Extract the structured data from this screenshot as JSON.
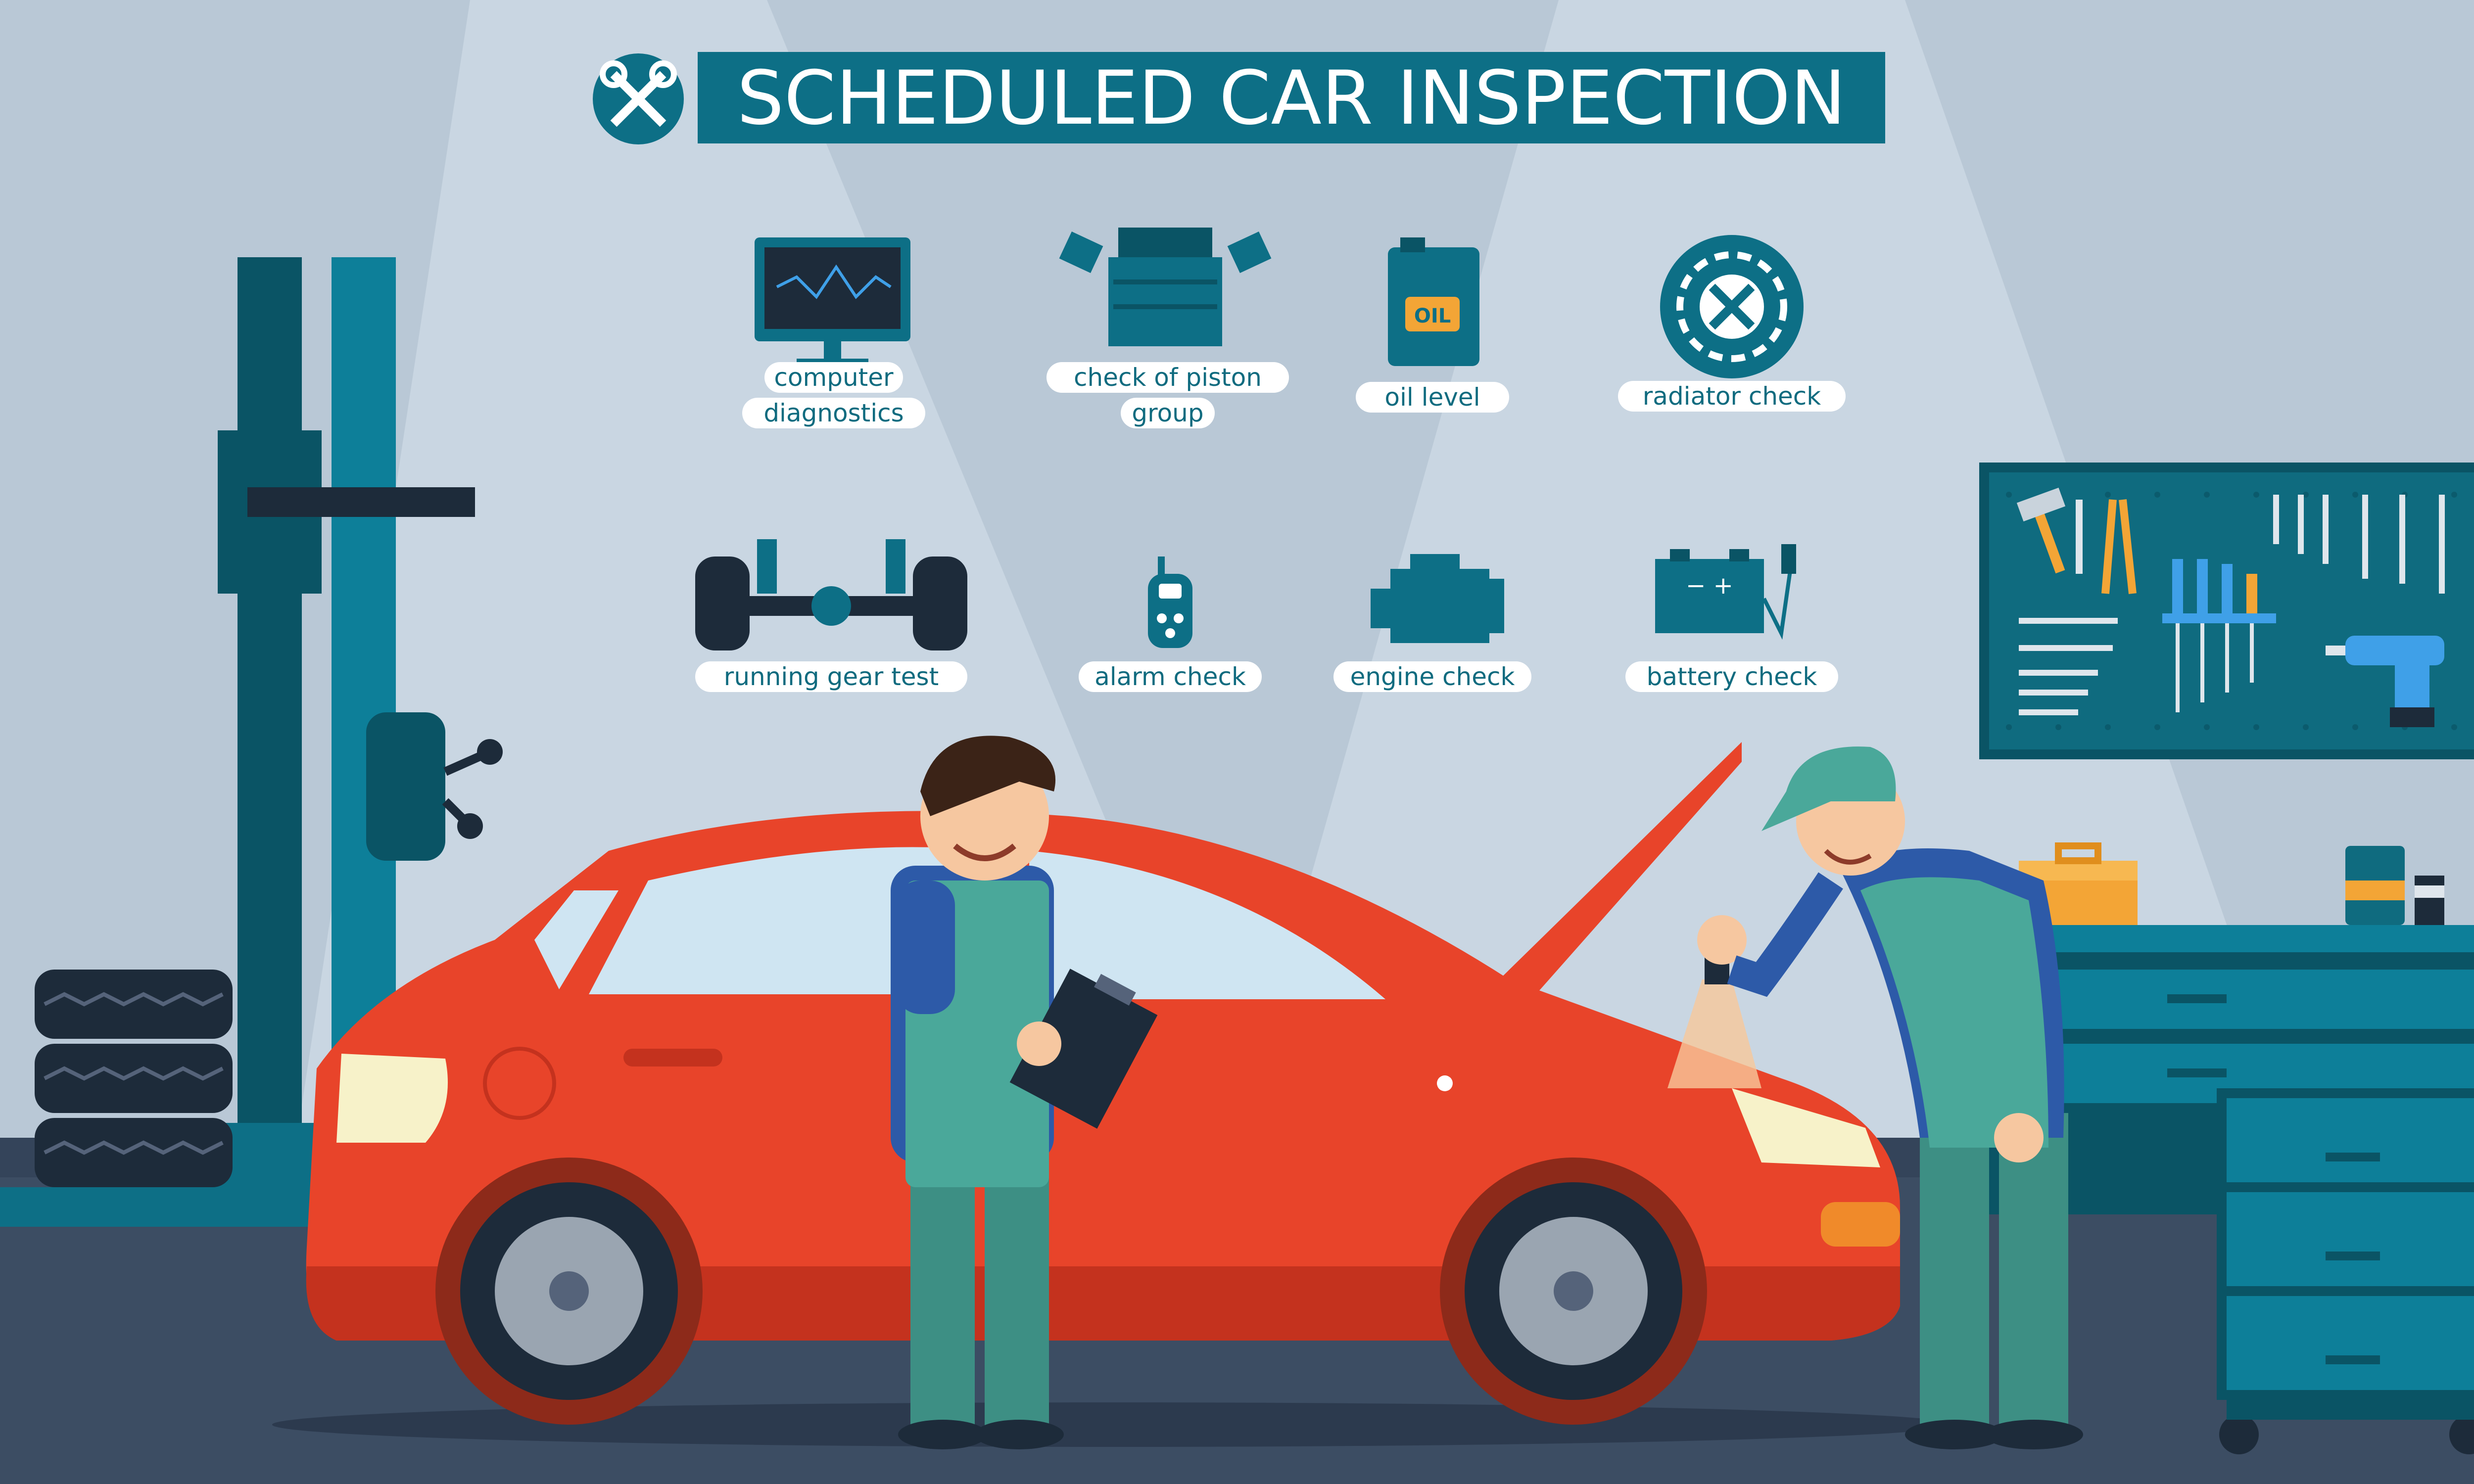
{
  "title": "SCHEDULED CAR INSPECTION",
  "title_icon": "wrench-screwdriver-cross-icon",
  "checks": [
    {
      "lines": [
        "computer",
        "diagnostics"
      ],
      "icon": "monitor-icon"
    },
    {
      "lines": [
        "check of piston",
        "group"
      ],
      "icon": "engine-block-icon"
    },
    {
      "lines": [
        "oil level"
      ],
      "icon": "oil-can-icon",
      "icon_text": "OIL"
    },
    {
      "lines": [
        "radiator check"
      ],
      "icon": "radiator-fan-icon"
    },
    {
      "lines": [
        "running gear test"
      ],
      "icon": "axle-wheels-icon"
    },
    {
      "lines": [
        "alarm check"
      ],
      "icon": "key-fob-icon"
    },
    {
      "lines": [
        "engine check"
      ],
      "icon": "engine-icon"
    },
    {
      "lines": [
        "battery check"
      ],
      "icon": "battery-icon",
      "icon_text": "− +"
    }
  ],
  "colors": {
    "background": "#b9c8d6",
    "floor": "#3c4d63",
    "teal": "#0d6f86",
    "dark_teal": "#0a5465",
    "car_red": "#e8442a",
    "overalls": "#4aa89a",
    "shirt": "#2d5aa8"
  }
}
